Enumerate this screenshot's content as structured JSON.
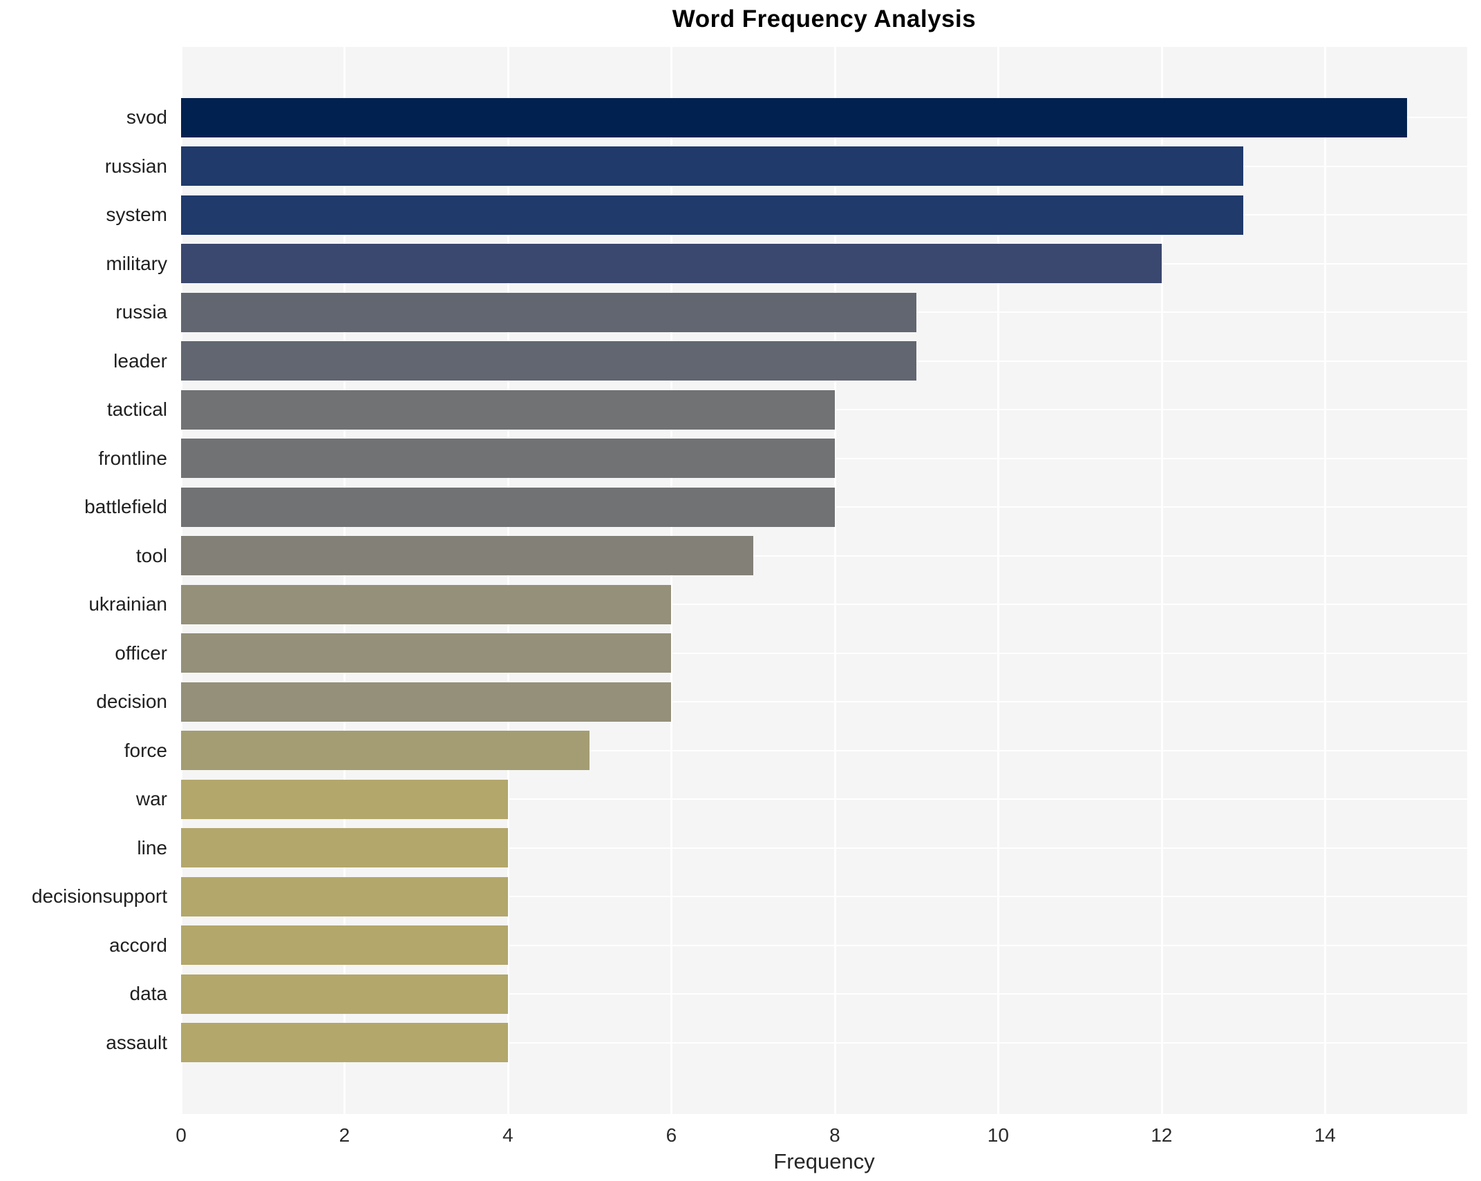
{
  "title": "Word Frequency Analysis",
  "xlabel": "Frequency",
  "chart_data": {
    "type": "bar",
    "orientation": "horizontal",
    "title": "Word Frequency Analysis",
    "xlabel": "Frequency",
    "ylabel": "",
    "categories": [
      "svod",
      "russian",
      "system",
      "military",
      "russia",
      "leader",
      "tactical",
      "frontline",
      "battlefield",
      "tool",
      "ukrainian",
      "officer",
      "decision",
      "force",
      "war",
      "line",
      "decisionsupport",
      "accord",
      "data",
      "assault"
    ],
    "values": [
      15,
      13,
      13,
      12,
      9,
      9,
      8,
      8,
      8,
      7,
      6,
      6,
      6,
      5,
      4,
      4,
      4,
      4,
      4,
      4
    ],
    "bar_colors": [
      "#012150",
      "#1f3a6b",
      "#1f3a6b",
      "#3a476e",
      "#626670",
      "#626670",
      "#717274",
      "#717274",
      "#717274",
      "#838078",
      "#94907a",
      "#94907a",
      "#94907a",
      "#a49d73",
      "#b3a76b",
      "#b3a76b",
      "#b3a76b",
      "#b3a76b",
      "#b3a76b",
      "#b3a76b"
    ],
    "xticks": [
      0,
      2,
      4,
      6,
      8,
      10,
      12,
      14
    ],
    "xlim": [
      0,
      15.74
    ],
    "grid": true,
    "legend": "none",
    "plot_background": "#f5f5f6",
    "grid_color": "#ffffff",
    "page_background": "#ffffff"
  }
}
